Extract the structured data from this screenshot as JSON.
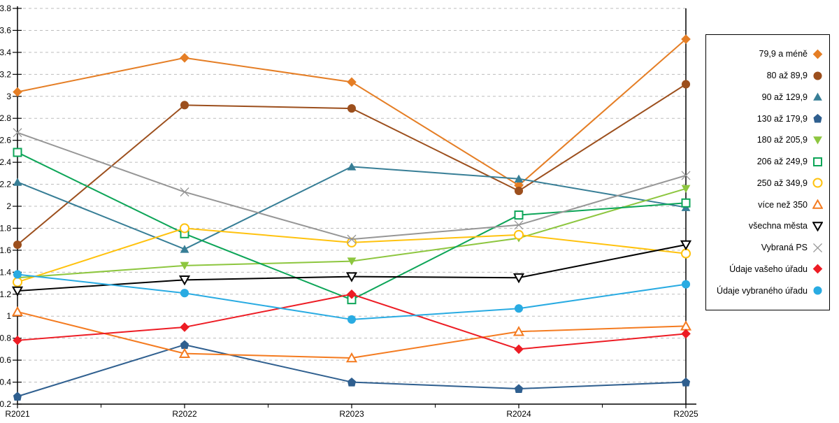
{
  "chart_data": {
    "type": "line",
    "title": "",
    "xlabel": "",
    "ylabel": "",
    "x_categories": [
      "R2021",
      "R2022",
      "R2023",
      "R2024",
      "R2025"
    ],
    "ylim": [
      0.2,
      3.8
    ],
    "ytick_step": 0.2,
    "grid": "horizontal-dashed",
    "gridline_color": "#bdbdbd",
    "axis_color": "#000000",
    "legend_position": "right-box",
    "series": [
      {
        "name": "79,9 a méně",
        "color": "#E57E25",
        "marker": "diamond",
        "filled": true,
        "values": [
          3.04,
          3.35,
          3.13,
          2.19,
          3.52
        ]
      },
      {
        "name": "80 až 89,9",
        "color": "#9C4F1D",
        "marker": "circle",
        "filled": true,
        "values": [
          1.65,
          2.92,
          2.89,
          2.14,
          3.11
        ]
      },
      {
        "name": "90 až 129,9",
        "color": "#377E96",
        "marker": "triangle-up",
        "filled": true,
        "values": [
          2.22,
          1.61,
          2.36,
          2.25,
          1.99
        ]
      },
      {
        "name": "130 až 179,9",
        "color": "#2F5F8F",
        "marker": "pentagon",
        "filled": true,
        "values": [
          0.27,
          0.74,
          0.4,
          0.34,
          0.4
        ]
      },
      {
        "name": "180 až 205,9",
        "color": "#8DC63F",
        "marker": "triangle-down",
        "filled": true,
        "values": [
          1.35,
          1.46,
          1.5,
          1.71,
          2.16
        ]
      },
      {
        "name": "206 až 249,9",
        "color": "#0DA558",
        "marker": "square",
        "filled": false,
        "values": [
          2.49,
          1.75,
          1.15,
          1.92,
          2.03
        ]
      },
      {
        "name": "250 až 349,9",
        "color": "#FFC20E",
        "marker": "circle",
        "filled": false,
        "values": [
          1.31,
          1.8,
          1.67,
          1.74,
          1.57
        ]
      },
      {
        "name": "více než 350",
        "color": "#F47B20",
        "marker": "triangle-up",
        "filled": false,
        "values": [
          1.04,
          0.66,
          0.62,
          0.86,
          0.91
        ]
      },
      {
        "name": "všechna města",
        "color": "#000000",
        "marker": "triangle-down",
        "filled": false,
        "values": [
          1.23,
          1.33,
          1.36,
          1.35,
          1.65
        ]
      },
      {
        "name": "Vybraná PS",
        "color": "#969696",
        "marker": "x",
        "filled": false,
        "values": [
          2.67,
          2.13,
          1.7,
          1.83,
          2.28
        ]
      },
      {
        "name": "Údaje vašeho úřadu",
        "color": "#ED1C24",
        "marker": "diamond",
        "filled": true,
        "values": [
          0.78,
          0.9,
          1.2,
          0.7,
          0.84
        ]
      },
      {
        "name": "Údaje vybraného úřadu",
        "color": "#29ABE2",
        "marker": "circle",
        "filled": true,
        "values": [
          1.38,
          1.21,
          0.97,
          1.07,
          1.29
        ]
      }
    ]
  }
}
